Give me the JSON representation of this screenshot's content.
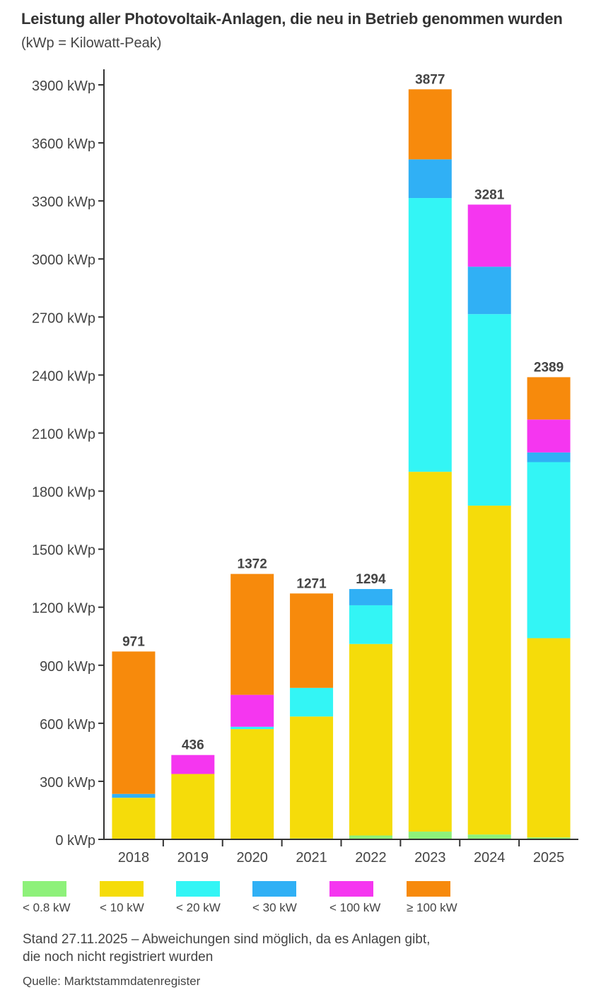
{
  "header": {
    "title": "Leistung aller Photovoltaik-Anlagen, die neu in Betrieb genommen wurden",
    "subtitle": "(kWp = Kilowatt-Peak)"
  },
  "footer": {
    "note_line1": "Stand 27.11.2025 – Abweichungen sind möglich, da es Anlagen gibt,",
    "note_line2": "die noch nicht registriert wurden",
    "source": "Quelle: Marktstammdatenregister"
  },
  "legend": [
    {
      "label": "< 0.8 kW",
      "color": "#8ef17a"
    },
    {
      "label": "< 10 kW",
      "color": "#f5dc0a"
    },
    {
      "label": "< 20 kW",
      "color": "#33f5f5"
    },
    {
      "label": "< 30 kW",
      "color": "#30b0f5"
    },
    {
      "label": "< 100 kW",
      "color": "#f536f0"
    },
    {
      "label": "≥ 100 kW",
      "color": "#f78a0c"
    }
  ],
  "chart_data": {
    "type": "bar",
    "stacked": true,
    "title": "Leistung aller Photovoltaik-Anlagen, die neu in Betrieb genommen wurden",
    "subtitle": "(kWp = Kilowatt-Peak)",
    "xlabel": "",
    "ylabel": "",
    "ylim": [
      0,
      3900
    ],
    "y_ticks": [
      0,
      300,
      600,
      900,
      1200,
      1500,
      1800,
      2100,
      2400,
      2700,
      3000,
      3300,
      3600,
      3900
    ],
    "y_tick_suffix": " kWp",
    "grid": false,
    "legend_position": "bottom",
    "categories": [
      "2018",
      "2019",
      "2020",
      "2021",
      "2022",
      "2023",
      "2024",
      "2025"
    ],
    "totals": [
      971,
      436,
      1372,
      1271,
      1294,
      3877,
      3281,
      2389
    ],
    "series": [
      {
        "name": "< 0.8 kW",
        "color": "#8ef17a",
        "values": [
          0,
          0,
          0,
          5,
          20,
          40,
          25,
          10
        ]
      },
      {
        "name": "< 10 kW",
        "color": "#f5dc0a",
        "values": [
          215,
          338,
          570,
          630,
          990,
          1860,
          1700,
          1030
        ]
      },
      {
        "name": "< 20 kW",
        "color": "#33f5f5",
        "values": [
          0,
          0,
          12,
          148,
          200,
          1415,
          990,
          910
        ]
      },
      {
        "name": "< 30 kW",
        "color": "#30b0f5",
        "values": [
          20,
          0,
          0,
          0,
          84,
          200,
          245,
          50
        ]
      },
      {
        "name": "< 100 kW",
        "color": "#f536f0",
        "values": [
          0,
          98,
          165,
          0,
          0,
          0,
          321,
          170
        ]
      },
      {
        "name": "≥ 100 kW",
        "color": "#f78a0c",
        "values": [
          736,
          0,
          625,
          488,
          0,
          362,
          0,
          219
        ]
      }
    ]
  }
}
